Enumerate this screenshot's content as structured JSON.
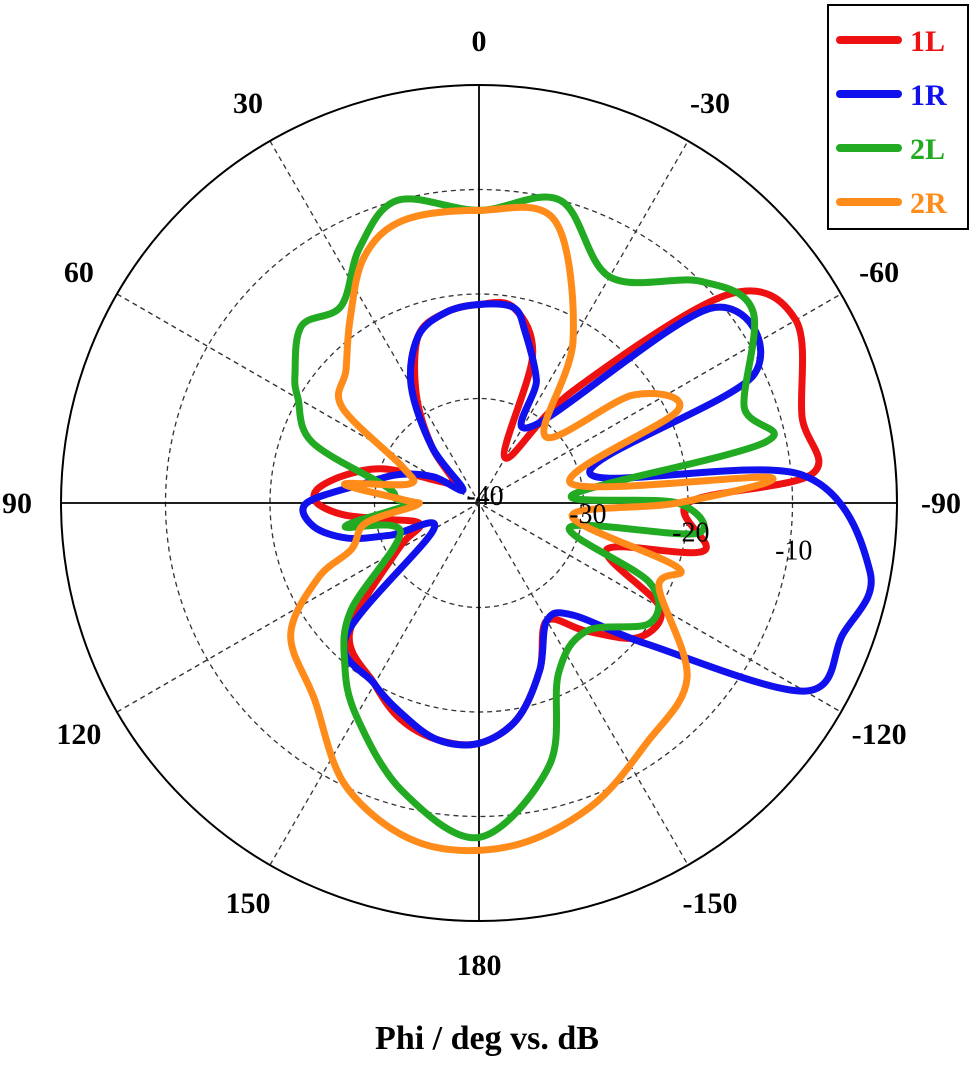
{
  "chart_data": {
    "type": "polar-line",
    "xlabel": "Phi / deg vs. dB",
    "angle_unit": "deg",
    "angle_zero": "top",
    "angle_direction": "counterclockwise",
    "angle_ticks": [
      0,
      30,
      60,
      90,
      120,
      150,
      180,
      -150,
      -120,
      -90,
      -60,
      -30
    ],
    "angle_tick_labels": [
      "0",
      "30",
      "60",
      "90",
      "120",
      "150",
      "180",
      "-150",
      "-120",
      "-90",
      "-60",
      "-30"
    ],
    "radial_range": [
      -40,
      0
    ],
    "radial_ticks": [
      -40,
      -30,
      -20,
      -10
    ],
    "radial_tick_labels": [
      "-40",
      "-30",
      "-20",
      "-10"
    ],
    "radial_label_angle": -100,
    "grid": true,
    "legend_position": "top-right",
    "series": [
      {
        "name": "1L",
        "color": "#ee1111",
        "points": [
          [
            0,
            -21
          ],
          [
            10,
            -21.5
          ],
          [
            20,
            -23
          ],
          [
            30,
            -28
          ],
          [
            40,
            -33
          ],
          [
            50,
            -37
          ],
          [
            60,
            -36
          ],
          [
            70,
            -30.5
          ],
          [
            78,
            -27
          ],
          [
            85,
            -24.5
          ],
          [
            90,
            -24.5
          ],
          [
            95,
            -27
          ],
          [
            100,
            -31
          ],
          [
            110,
            -34
          ],
          [
            120,
            -31
          ],
          [
            135,
            -22.5
          ],
          [
            150,
            -20
          ],
          [
            160,
            -18
          ],
          [
            170,
            -17
          ],
          [
            180,
            -17
          ],
          [
            190,
            -19
          ],
          [
            200,
            -23
          ],
          [
            210,
            -27
          ],
          [
            220,
            -24
          ],
          [
            230,
            -20
          ],
          [
            240,
            -20
          ],
          [
            250,
            -27
          ],
          [
            258,
            -18
          ],
          [
            270,
            -20
          ],
          [
            275,
            -8
          ],
          [
            285,
            -8
          ],
          [
            300,
            -5
          ],
          [
            310,
            -9
          ],
          [
            320,
            -26
          ],
          [
            330,
            -35
          ],
          [
            340,
            -25
          ],
          [
            350,
            -21
          ],
          [
            360,
            -21
          ]
        ]
      },
      {
        "name": "1R",
        "color": "#1111ee",
        "points": [
          [
            0,
            -21
          ],
          [
            10,
            -21.5
          ],
          [
            20,
            -23
          ],
          [
            30,
            -27
          ],
          [
            40,
            -33
          ],
          [
            50,
            -38
          ],
          [
            60,
            -35
          ],
          [
            70,
            -32
          ],
          [
            80,
            -29
          ],
          [
            90,
            -23.5
          ],
          [
            98,
            -24
          ],
          [
            105,
            -27
          ],
          [
            110,
            -31
          ],
          [
            120,
            -35
          ],
          [
            135,
            -22
          ],
          [
            150,
            -20
          ],
          [
            160,
            -18.5
          ],
          [
            170,
            -17
          ],
          [
            180,
            -17
          ],
          [
            190,
            -19
          ],
          [
            200,
            -23
          ],
          [
            210,
            -27
          ],
          [
            220,
            -26
          ],
          [
            230,
            -19
          ],
          [
            240,
            -4
          ],
          [
            250,
            -3
          ],
          [
            260,
            -2
          ],
          [
            275,
            -9
          ],
          [
            285,
            -29
          ],
          [
            295,
            -11
          ],
          [
            310,
            -11
          ],
          [
            325,
            -31
          ],
          [
            335,
            -27
          ],
          [
            345,
            -23
          ],
          [
            350,
            -21
          ],
          [
            360,
            -21
          ]
        ]
      },
      {
        "name": "2L",
        "color": "#22aa22",
        "points": [
          [
            0,
            -12
          ],
          [
            15,
            -10
          ],
          [
            25,
            -13
          ],
          [
            35,
            -17
          ],
          [
            45,
            -16
          ],
          [
            55,
            -18.5
          ],
          [
            60,
            -20
          ],
          [
            70,
            -23
          ],
          [
            80,
            -31
          ],
          [
            87,
            -32
          ],
          [
            92,
            -33
          ],
          [
            100,
            -27
          ],
          [
            110,
            -32
          ],
          [
            130,
            -24
          ],
          [
            140,
            -20
          ],
          [
            150,
            -16.5
          ],
          [
            165,
            -11.5
          ],
          [
            180,
            -8
          ],
          [
            195,
            -14
          ],
          [
            205,
            -22
          ],
          [
            220,
            -24
          ],
          [
            235,
            -20
          ],
          [
            245,
            -22
          ],
          [
            255,
            -31
          ],
          [
            262,
            -19
          ],
          [
            270,
            -21
          ],
          [
            275,
            -31
          ],
          [
            282,
            -12
          ],
          [
            290,
            -13
          ],
          [
            305,
            -8
          ],
          [
            315,
            -10
          ],
          [
            330,
            -15
          ],
          [
            345,
            -10
          ],
          [
            360,
            -12
          ]
        ]
      },
      {
        "name": "2R",
        "color": "#ff8c1a",
        "points": [
          [
            0,
            -12
          ],
          [
            15,
            -12
          ],
          [
            25,
            -14
          ],
          [
            35,
            -18.5
          ],
          [
            45,
            -22
          ],
          [
            55,
            -24
          ],
          [
            65,
            -32
          ],
          [
            75,
            -33
          ],
          [
            82,
            -27
          ],
          [
            88,
            -33
          ],
          [
            92,
            -34
          ],
          [
            100,
            -29
          ],
          [
            110,
            -27
          ],
          [
            115,
            -23
          ],
          [
            125,
            -18
          ],
          [
            140,
            -15.5
          ],
          [
            155,
            -10
          ],
          [
            170,
            -7
          ],
          [
            185,
            -7
          ],
          [
            200,
            -9
          ],
          [
            215,
            -12
          ],
          [
            230,
            -14
          ],
          [
            245,
            -21
          ],
          [
            252,
            -20
          ],
          [
            262,
            -31
          ],
          [
            270,
            -21
          ],
          [
            275,
            -12
          ],
          [
            282,
            -31
          ],
          [
            295,
            -19
          ],
          [
            305,
            -22
          ],
          [
            315,
            -31
          ],
          [
            330,
            -22
          ],
          [
            345,
            -12
          ],
          [
            360,
            -12
          ]
        ]
      }
    ]
  }
}
